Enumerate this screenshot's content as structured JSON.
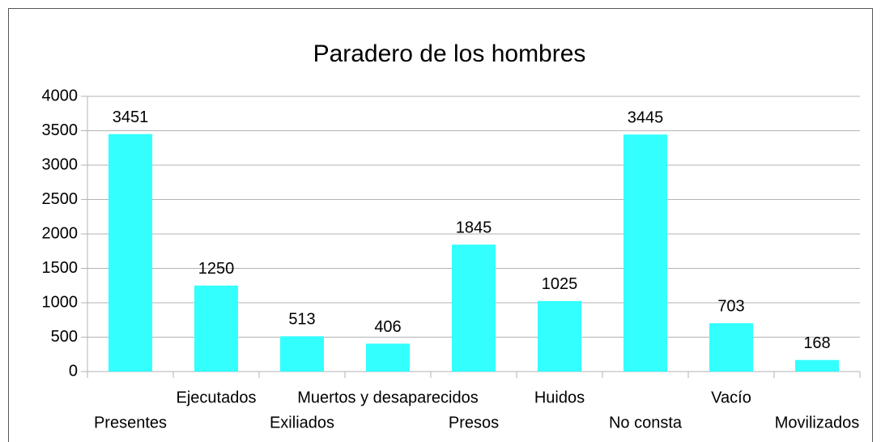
{
  "chart_data": {
    "type": "bar",
    "title": "Paradero de los hombres",
    "categories": [
      "Presentes",
      "Ejecutados",
      "Exiliados",
      "Muertos y desaparecidos",
      "Presos",
      "Huidos",
      "No consta",
      "Vacío",
      "Movilizados"
    ],
    "values": [
      3451,
      1250,
      513,
      406,
      1845,
      1025,
      3445,
      703,
      168
    ],
    "color": "#33ffff",
    "ylim": [
      0,
      4000
    ],
    "yticks": [
      0,
      500,
      1000,
      1500,
      2000,
      2500,
      3000,
      3500,
      4000
    ],
    "grid": true
  }
}
